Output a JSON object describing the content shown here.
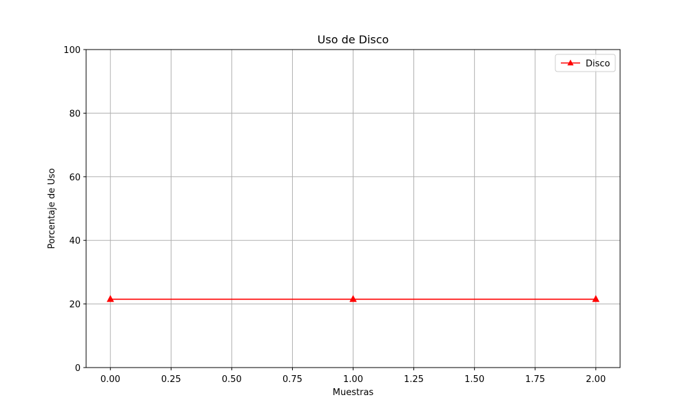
{
  "chart_data": {
    "type": "line",
    "title": "Uso de Disco",
    "xlabel": "Muestras",
    "ylabel": "Porcentaje de Uso",
    "xlim": [
      -0.1,
      2.1
    ],
    "ylim": [
      0,
      100
    ],
    "x_ticks": [
      0.0,
      0.25,
      0.5,
      0.75,
      1.0,
      1.25,
      1.5,
      1.75,
      2.0
    ],
    "x_tick_labels": [
      "0.00",
      "0.25",
      "0.50",
      "0.75",
      "1.00",
      "1.25",
      "1.50",
      "1.75",
      "2.00"
    ],
    "y_ticks": [
      0,
      20,
      40,
      60,
      80,
      100
    ],
    "y_tick_labels": [
      "0",
      "20",
      "40",
      "60",
      "80",
      "100"
    ],
    "grid": true,
    "legend_position": "top-right",
    "series": [
      {
        "name": "Disco",
        "color": "#ff0000",
        "marker": "triangle-up",
        "x": [
          0,
          1,
          2
        ],
        "y": [
          21.5,
          21.5,
          21.5
        ]
      }
    ]
  }
}
